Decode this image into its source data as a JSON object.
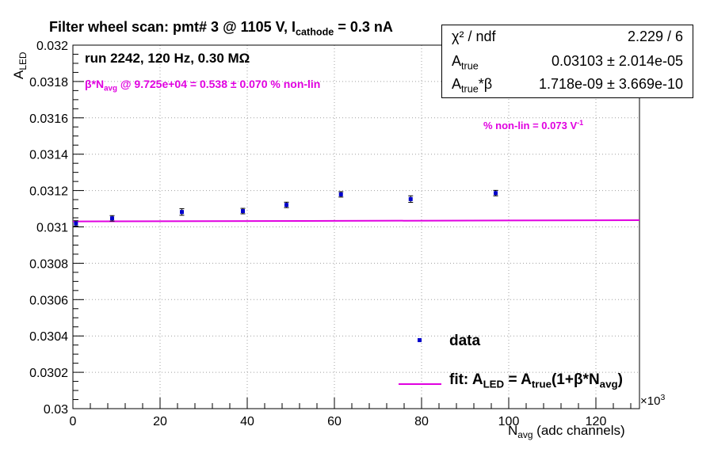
{
  "title": {
    "prefix": "Filter wheel scan: pmt#   3 @  1105 V, I",
    "sub": "cathode",
    "suffix": " = 0.3 nA"
  },
  "stats_box": {
    "chi2_label": "χ² / ndf",
    "chi2_value": "2.229 / 6",
    "atrue_label": "A",
    "atrue_sub": "true",
    "atrue_value": "0.03103 ± 2.014e-05",
    "atrue_beta_label": "A",
    "atrue_beta_sub": "true",
    "atrue_beta_suffix": "*β",
    "atrue_beta_value": "1.718e-09 ± 3.669e-10"
  },
  "info": {
    "run": "run 2242, 120 Hz, 0.30 MΩ",
    "beta_prefix": "β*N",
    "beta_sub": "avg",
    "beta_suffix": " @ 9.725e+04 = 0.538 ± 0.070 % non-lin",
    "nonlin": "% non-lin = 0.073 V",
    "nonlin_sup": "-1"
  },
  "legend": {
    "data_label": "data",
    "fit_a": "fit: A",
    "fit_a_sub": "LED",
    "fit_b": " = A",
    "fit_b_sub": "true",
    "fit_c": "(1+β*N",
    "fit_c_sub": "avg",
    "fit_d": ")"
  },
  "axes": {
    "x_label": "N",
    "x_label_sub": "avg",
    "x_label_suffix": " (adc channels)",
    "x_exponent": "×10",
    "x_exponent_sup": "3",
    "y_label": "A",
    "y_label_sub": "LED"
  },
  "colors": {
    "data": "#0000cc",
    "fit": "#e000e0",
    "axis": "#000000",
    "grid": "#a0a0a0"
  },
  "chart_data": {
    "type": "scatter",
    "x_scale_factor": 1000,
    "xlim": [
      0,
      130
    ],
    "ylim": [
      0.03,
      0.032
    ],
    "grid": true,
    "x_ticks": [
      0,
      20,
      40,
      60,
      80,
      100,
      120
    ],
    "y_ticks": [
      "0.03",
      "0.0302",
      "0.0304",
      "0.0306",
      "0.0308",
      "0.031",
      "0.0312",
      "0.0314",
      "0.0316",
      "0.0318",
      "0.032"
    ],
    "series": [
      {
        "name": "data",
        "x": [
          0.7,
          9.0,
          25.0,
          39.0,
          49.0,
          61.5,
          77.5,
          97.0
        ],
        "y": [
          0.031019,
          0.031047,
          0.031082,
          0.031087,
          0.031121,
          0.031179,
          0.031153,
          0.031186
        ],
        "y_err": [
          1.5e-05,
          1.5e-05,
          1.8e-05,
          1.5e-05,
          1.5e-05,
          1.5e-05,
          1.8e-05,
          1.5e-05
        ]
      }
    ],
    "fit": {
      "name": "fit",
      "A_true": 0.03103,
      "beta": 1.718e-09,
      "x_range": [
        0,
        130
      ]
    }
  }
}
